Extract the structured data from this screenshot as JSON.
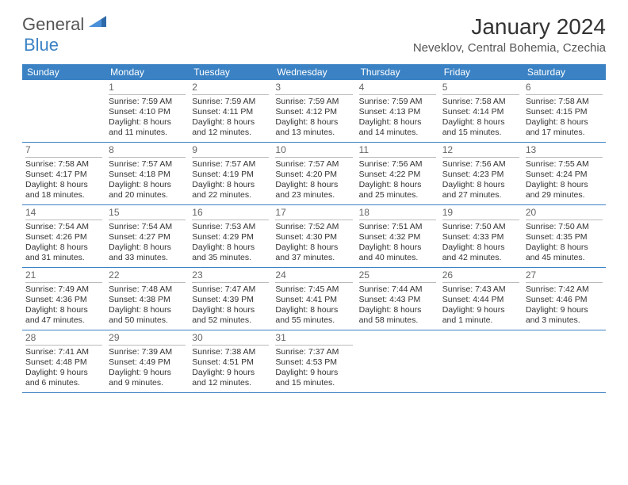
{
  "logo": {
    "text1": "General",
    "text2": "Blue"
  },
  "title": "January 2024",
  "location": "Neveklov, Central Bohemia, Czechia",
  "colors": {
    "header_bg": "#3b82c4",
    "header_text": "#ffffff",
    "cell_border": "#3b82c4",
    "daynum_border": "#bbbbbb",
    "body_text": "#333333",
    "title_text": "#333333",
    "subtitle_text": "#555555",
    "logo_general": "#555555",
    "logo_blue": "#3b82c4",
    "background": "#ffffff"
  },
  "typography": {
    "title_fontsize": 28,
    "location_fontsize": 15,
    "dayhead_fontsize": 12,
    "daynum_fontsize": 12,
    "body_fontsize": 10.5,
    "logo_fontsize": 22
  },
  "day_headers": [
    "Sunday",
    "Monday",
    "Tuesday",
    "Wednesday",
    "Thursday",
    "Friday",
    "Saturday"
  ],
  "weeks": [
    [
      {
        "num": "",
        "sunrise": "",
        "sunset": "",
        "daylight": ""
      },
      {
        "num": "1",
        "sunrise": "Sunrise: 7:59 AM",
        "sunset": "Sunset: 4:10 PM",
        "daylight": "Daylight: 8 hours and 11 minutes."
      },
      {
        "num": "2",
        "sunrise": "Sunrise: 7:59 AM",
        "sunset": "Sunset: 4:11 PM",
        "daylight": "Daylight: 8 hours and 12 minutes."
      },
      {
        "num": "3",
        "sunrise": "Sunrise: 7:59 AM",
        "sunset": "Sunset: 4:12 PM",
        "daylight": "Daylight: 8 hours and 13 minutes."
      },
      {
        "num": "4",
        "sunrise": "Sunrise: 7:59 AM",
        "sunset": "Sunset: 4:13 PM",
        "daylight": "Daylight: 8 hours and 14 minutes."
      },
      {
        "num": "5",
        "sunrise": "Sunrise: 7:58 AM",
        "sunset": "Sunset: 4:14 PM",
        "daylight": "Daylight: 8 hours and 15 minutes."
      },
      {
        "num": "6",
        "sunrise": "Sunrise: 7:58 AM",
        "sunset": "Sunset: 4:15 PM",
        "daylight": "Daylight: 8 hours and 17 minutes."
      }
    ],
    [
      {
        "num": "7",
        "sunrise": "Sunrise: 7:58 AM",
        "sunset": "Sunset: 4:17 PM",
        "daylight": "Daylight: 8 hours and 18 minutes."
      },
      {
        "num": "8",
        "sunrise": "Sunrise: 7:57 AM",
        "sunset": "Sunset: 4:18 PM",
        "daylight": "Daylight: 8 hours and 20 minutes."
      },
      {
        "num": "9",
        "sunrise": "Sunrise: 7:57 AM",
        "sunset": "Sunset: 4:19 PM",
        "daylight": "Daylight: 8 hours and 22 minutes."
      },
      {
        "num": "10",
        "sunrise": "Sunrise: 7:57 AM",
        "sunset": "Sunset: 4:20 PM",
        "daylight": "Daylight: 8 hours and 23 minutes."
      },
      {
        "num": "11",
        "sunrise": "Sunrise: 7:56 AM",
        "sunset": "Sunset: 4:22 PM",
        "daylight": "Daylight: 8 hours and 25 minutes."
      },
      {
        "num": "12",
        "sunrise": "Sunrise: 7:56 AM",
        "sunset": "Sunset: 4:23 PM",
        "daylight": "Daylight: 8 hours and 27 minutes."
      },
      {
        "num": "13",
        "sunrise": "Sunrise: 7:55 AM",
        "sunset": "Sunset: 4:24 PM",
        "daylight": "Daylight: 8 hours and 29 minutes."
      }
    ],
    [
      {
        "num": "14",
        "sunrise": "Sunrise: 7:54 AM",
        "sunset": "Sunset: 4:26 PM",
        "daylight": "Daylight: 8 hours and 31 minutes."
      },
      {
        "num": "15",
        "sunrise": "Sunrise: 7:54 AM",
        "sunset": "Sunset: 4:27 PM",
        "daylight": "Daylight: 8 hours and 33 minutes."
      },
      {
        "num": "16",
        "sunrise": "Sunrise: 7:53 AM",
        "sunset": "Sunset: 4:29 PM",
        "daylight": "Daylight: 8 hours and 35 minutes."
      },
      {
        "num": "17",
        "sunrise": "Sunrise: 7:52 AM",
        "sunset": "Sunset: 4:30 PM",
        "daylight": "Daylight: 8 hours and 37 minutes."
      },
      {
        "num": "18",
        "sunrise": "Sunrise: 7:51 AM",
        "sunset": "Sunset: 4:32 PM",
        "daylight": "Daylight: 8 hours and 40 minutes."
      },
      {
        "num": "19",
        "sunrise": "Sunrise: 7:50 AM",
        "sunset": "Sunset: 4:33 PM",
        "daylight": "Daylight: 8 hours and 42 minutes."
      },
      {
        "num": "20",
        "sunrise": "Sunrise: 7:50 AM",
        "sunset": "Sunset: 4:35 PM",
        "daylight": "Daylight: 8 hours and 45 minutes."
      }
    ],
    [
      {
        "num": "21",
        "sunrise": "Sunrise: 7:49 AM",
        "sunset": "Sunset: 4:36 PM",
        "daylight": "Daylight: 8 hours and 47 minutes."
      },
      {
        "num": "22",
        "sunrise": "Sunrise: 7:48 AM",
        "sunset": "Sunset: 4:38 PM",
        "daylight": "Daylight: 8 hours and 50 minutes."
      },
      {
        "num": "23",
        "sunrise": "Sunrise: 7:47 AM",
        "sunset": "Sunset: 4:39 PM",
        "daylight": "Daylight: 8 hours and 52 minutes."
      },
      {
        "num": "24",
        "sunrise": "Sunrise: 7:45 AM",
        "sunset": "Sunset: 4:41 PM",
        "daylight": "Daylight: 8 hours and 55 minutes."
      },
      {
        "num": "25",
        "sunrise": "Sunrise: 7:44 AM",
        "sunset": "Sunset: 4:43 PM",
        "daylight": "Daylight: 8 hours and 58 minutes."
      },
      {
        "num": "26",
        "sunrise": "Sunrise: 7:43 AM",
        "sunset": "Sunset: 4:44 PM",
        "daylight": "Daylight: 9 hours and 1 minute."
      },
      {
        "num": "27",
        "sunrise": "Sunrise: 7:42 AM",
        "sunset": "Sunset: 4:46 PM",
        "daylight": "Daylight: 9 hours and 3 minutes."
      }
    ],
    [
      {
        "num": "28",
        "sunrise": "Sunrise: 7:41 AM",
        "sunset": "Sunset: 4:48 PM",
        "daylight": "Daylight: 9 hours and 6 minutes."
      },
      {
        "num": "29",
        "sunrise": "Sunrise: 7:39 AM",
        "sunset": "Sunset: 4:49 PM",
        "daylight": "Daylight: 9 hours and 9 minutes."
      },
      {
        "num": "30",
        "sunrise": "Sunrise: 7:38 AM",
        "sunset": "Sunset: 4:51 PM",
        "daylight": "Daylight: 9 hours and 12 minutes."
      },
      {
        "num": "31",
        "sunrise": "Sunrise: 7:37 AM",
        "sunset": "Sunset: 4:53 PM",
        "daylight": "Daylight: 9 hours and 15 minutes."
      },
      {
        "num": "",
        "sunrise": "",
        "sunset": "",
        "daylight": ""
      },
      {
        "num": "",
        "sunrise": "",
        "sunset": "",
        "daylight": ""
      },
      {
        "num": "",
        "sunrise": "",
        "sunset": "",
        "daylight": ""
      }
    ]
  ]
}
